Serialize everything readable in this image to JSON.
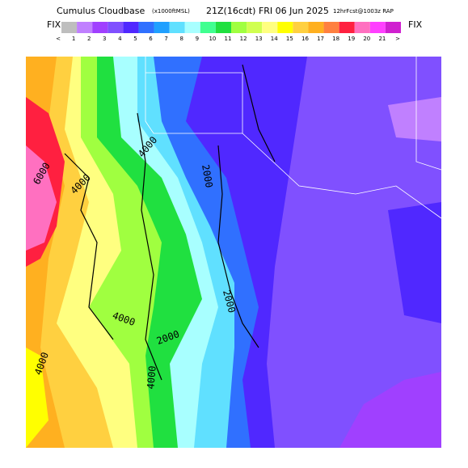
{
  "header": {
    "title": "Cumulus Cloudbase",
    "units": "(x1000ftMSL)",
    "valid": "21Z(16cdt) FRI 06 Jun 2025",
    "forecast": "12hrFcst@1003z RAP"
  },
  "colorbar": {
    "left_label": "FIX",
    "right_label": "FIX",
    "labels": [
      "<",
      "1",
      "2",
      "3",
      "4",
      "5",
      "6",
      "7",
      "8",
      "9",
      "10",
      "11",
      "12",
      "13",
      "14",
      "15",
      "16",
      "17",
      "18",
      "19",
      "20",
      "21",
      ">"
    ],
    "colors": [
      "#bebebe",
      "#c080ff",
      "#a040ff",
      "#8050ff",
      "#5028ff",
      "#3070ff",
      "#20a0ff",
      "#60e0ff",
      "#a8ffff",
      "#40ff90",
      "#20e040",
      "#a0ff40",
      "#d0ff50",
      "#ffff80",
      "#ffff00",
      "#ffd040",
      "#ffb020",
      "#ff8040",
      "#ff2040",
      "#ff70c0",
      "#ff40ff",
      "#d020d0"
    ]
  },
  "map": {
    "contour_labels": [
      "6000",
      "4000",
      "4000",
      "2000",
      "2000",
      "4000",
      "2000",
      "4000",
      "4000"
    ]
  }
}
